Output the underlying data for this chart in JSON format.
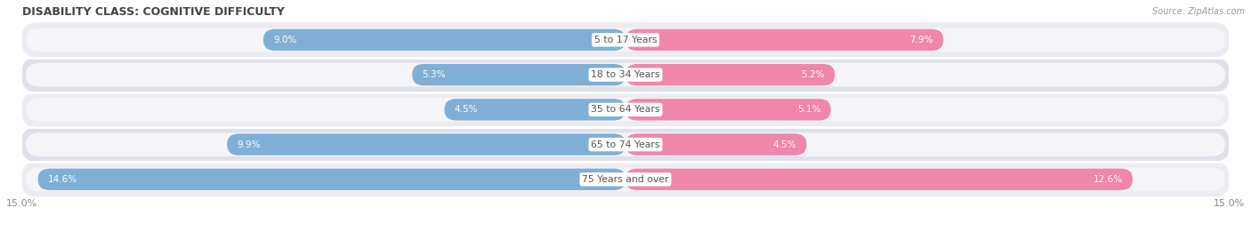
{
  "title": "DISABILITY CLASS: COGNITIVE DIFFICULTY",
  "source": "Source: ZipAtlas.com",
  "categories": [
    "5 to 17 Years",
    "18 to 34 Years",
    "35 to 64 Years",
    "65 to 74 Years",
    "75 Years and over"
  ],
  "male_values": [
    9.0,
    5.3,
    4.5,
    9.9,
    14.6
  ],
  "female_values": [
    7.9,
    5.2,
    5.1,
    4.5,
    12.6
  ],
  "xlim": 15.0,
  "male_color": "#7fafd6",
  "female_color": "#f086aa",
  "row_bg_color_odd": "#ebebf2",
  "row_bg_color_even": "#e0e0ea",
  "pill_bg_color": "#f5f5f8",
  "label_color_dark": "#555555",
  "label_color_white": "#ffffff",
  "title_color": "#444444",
  "axis_label_color": "#888888",
  "center_label_bg": "#ffffff",
  "bar_height": 0.62,
  "figsize": [
    14.06,
    2.7
  ],
  "dpi": 100
}
